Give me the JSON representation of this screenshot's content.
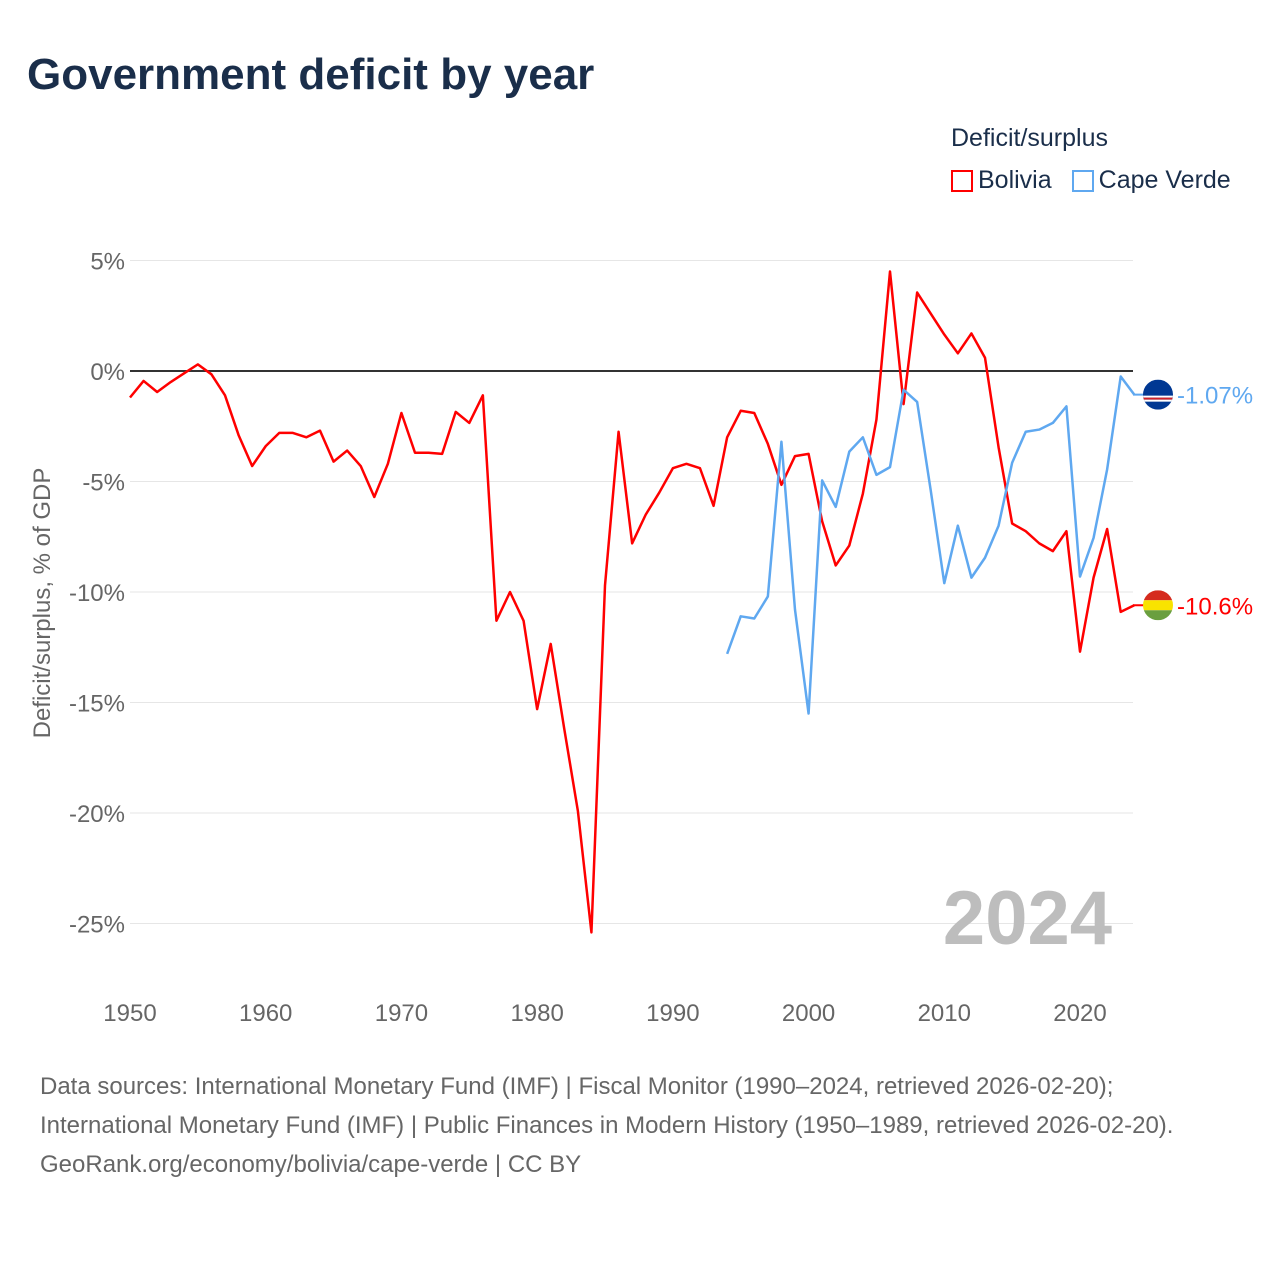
{
  "title": "Government deficit by year",
  "legend": {
    "title": "Deficit/surplus",
    "items": [
      {
        "name": "Bolivia",
        "color": "#ff0000"
      },
      {
        "name": "Cape Verde",
        "color": "#5fa8f0"
      }
    ]
  },
  "watermark_year": "2024",
  "end_labels": {
    "cape_verde": "-1.07%",
    "bolivia": "-10.6%"
  },
  "footer": {
    "sources": "Data sources: International Monetary Fund (IMF) | Fiscal Monitor (1990–2024, retrieved 2026-02-20); International Monetary Fund (IMF) | Public Finances in Modern History (1950–1989, retrieved 2026-02-20).",
    "link": "GeoRank.org/economy/bolivia/cape-verde | CC BY"
  },
  "chart_data": {
    "type": "line",
    "title": "Government deficit by year",
    "xlabel": "",
    "ylabel": "Deficit/surplus, % of GDP",
    "xlim": [
      1950,
      2024
    ],
    "ylim": [
      -27,
      6
    ],
    "xticks": [
      1950,
      1960,
      1970,
      1980,
      1990,
      2000,
      2010,
      2020
    ],
    "yticks": [
      {
        "v": 5,
        "label": "5%"
      },
      {
        "v": 0,
        "label": "0%"
      },
      {
        "v": -5,
        "label": "-5%"
      },
      {
        "v": -10,
        "label": "-10%"
      },
      {
        "v": -15,
        "label": "-15%"
      },
      {
        "v": -20,
        "label": "-20%"
      },
      {
        "v": -25,
        "label": "-25%"
      }
    ],
    "series": [
      {
        "name": "Bolivia",
        "color": "#ff0000",
        "start": 1950,
        "values": [
          -1.2,
          -0.45,
          -0.95,
          -0.5,
          -0.1,
          0.3,
          -0.15,
          -1.1,
          -2.9,
          -4.3,
          -3.4,
          -2.8,
          -2.8,
          -3.0,
          -2.7,
          -4.1,
          -3.6,
          -4.3,
          -5.7,
          -4.2,
          -1.9,
          -3.7,
          -3.7,
          -3.75,
          -1.85,
          -2.35,
          -1.1,
          -11.3,
          -10.0,
          -11.3,
          -15.3,
          -12.35,
          -16.2,
          -19.9,
          -25.4,
          -9.7,
          -2.75,
          -7.8,
          -6.5,
          -5.5,
          -4.4,
          -4.2,
          -4.4,
          -6.1,
          -3.0,
          -1.8,
          -1.9,
          -3.3,
          -5.15,
          -3.85,
          -3.75,
          -6.8,
          -8.8,
          -7.9,
          -5.55,
          -2.2,
          4.5,
          -1.5,
          3.55,
          2.6,
          1.65,
          0.8,
          1.7,
          0.6,
          -3.45,
          -6.9,
          -7.25,
          -7.8,
          -8.15,
          -7.25,
          -12.7,
          -9.35,
          -7.15,
          -10.9,
          -10.6
        ]
      },
      {
        "name": "Cape Verde",
        "color": "#5fa8f0",
        "start": 1994,
        "values": [
          -12.8,
          -11.1,
          -11.2,
          -10.2,
          -3.2,
          -10.8,
          -15.5,
          -4.95,
          -6.15,
          -3.65,
          -3.0,
          -4.7,
          -4.35,
          -0.85,
          -1.4,
          -5.4,
          -9.6,
          -7.0,
          -9.35,
          -8.45,
          -7.0,
          -4.15,
          -2.75,
          -2.65,
          -2.35,
          -1.6,
          -9.3,
          -7.55,
          -4.45,
          -0.25,
          -1.07
        ]
      }
    ]
  }
}
